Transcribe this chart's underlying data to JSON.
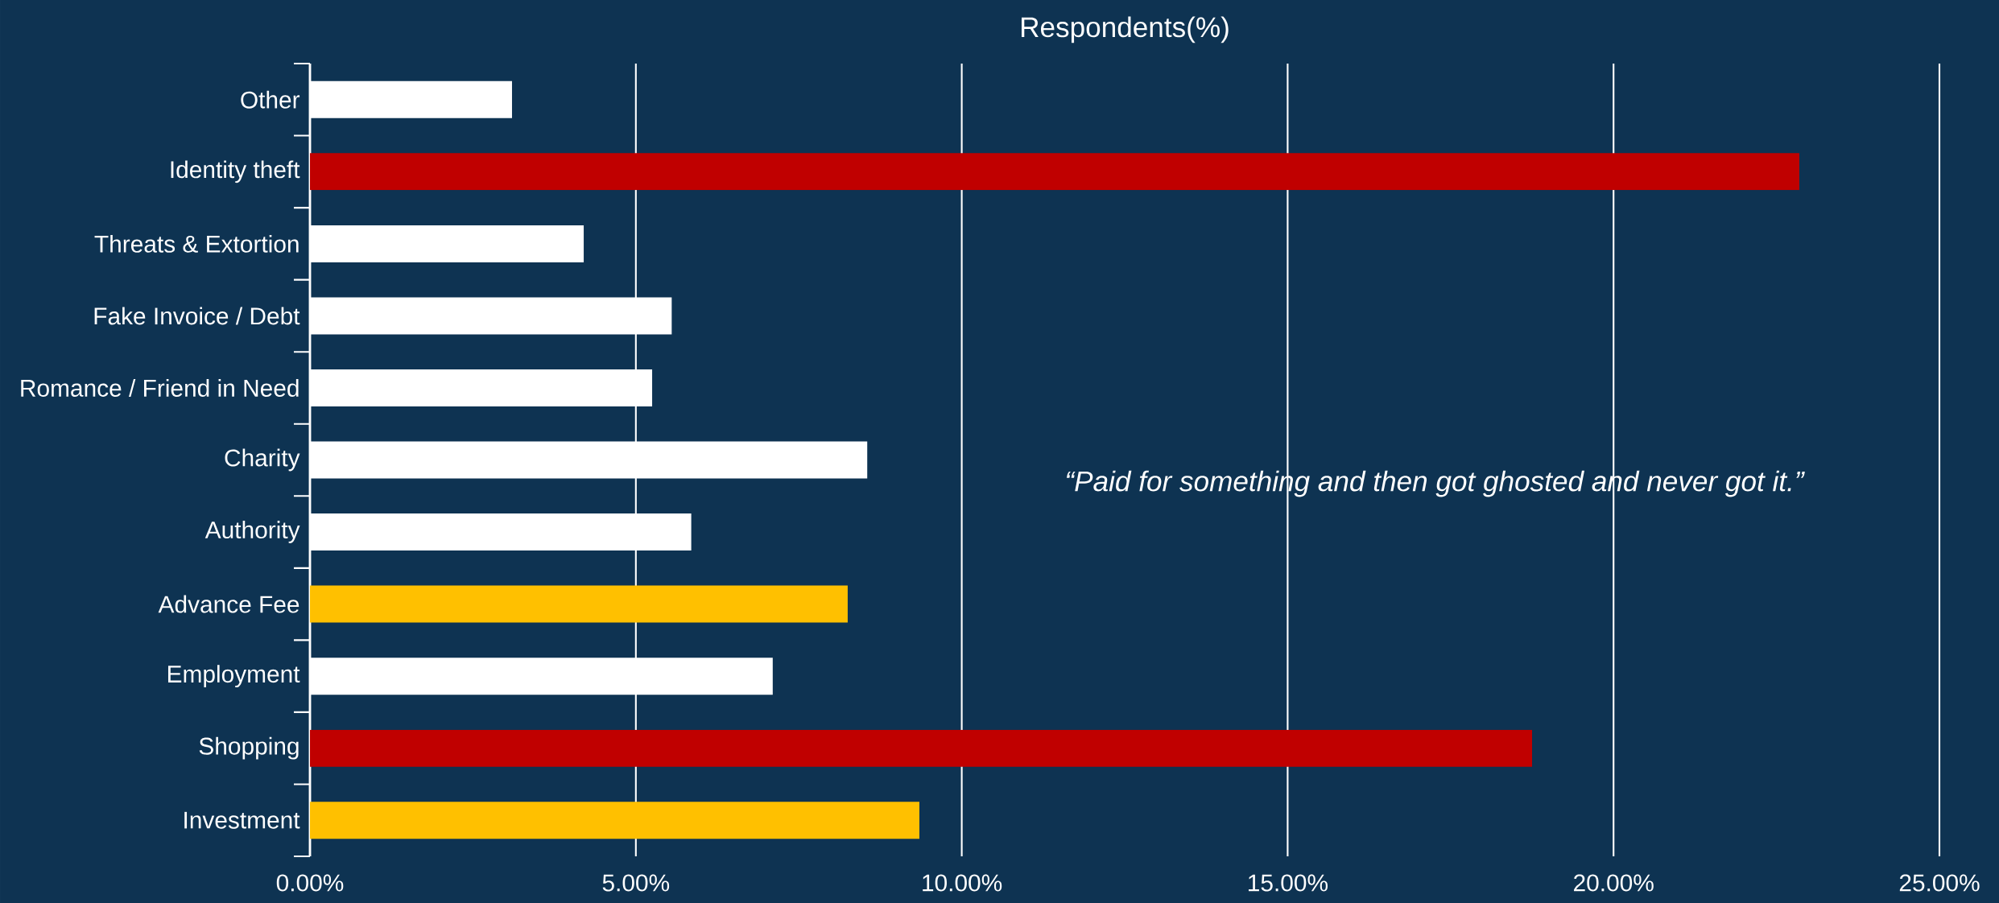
{
  "chart_data": {
    "type": "bar",
    "orientation": "horizontal",
    "title": "Respondents(%)",
    "categories": [
      "Other",
      "Identity theft",
      "Threats & Extortion",
      "Fake Invoice / Debt",
      "Romance / Friend in Need",
      "Charity",
      "Authority",
      "Advance Fee",
      "Employment",
      "Shopping",
      "Investment"
    ],
    "values": [
      3.1,
      22.85,
      4.2,
      5.55,
      5.25,
      8.55,
      5.85,
      8.25,
      7.1,
      18.75,
      9.35
    ],
    "colors": [
      "#ffffff",
      "#c00000",
      "#ffffff",
      "#ffffff",
      "#ffffff",
      "#ffffff",
      "#ffffff",
      "#ffc000",
      "#ffffff",
      "#c00000",
      "#ffc000"
    ],
    "xlim": [
      0,
      25
    ],
    "xticks": [
      {
        "value": 0,
        "label": "0.00%"
      },
      {
        "value": 5,
        "label": "5.00%"
      },
      {
        "value": 10,
        "label": "10.00%"
      },
      {
        "value": 15,
        "label": "15.00%"
      },
      {
        "value": 20,
        "label": "20.00%"
      },
      {
        "value": 25,
        "label": "25.00%"
      }
    ],
    "grid": "x",
    "annotations": [
      "“Paid for something and then got ghosted and never got it.”"
    ]
  }
}
